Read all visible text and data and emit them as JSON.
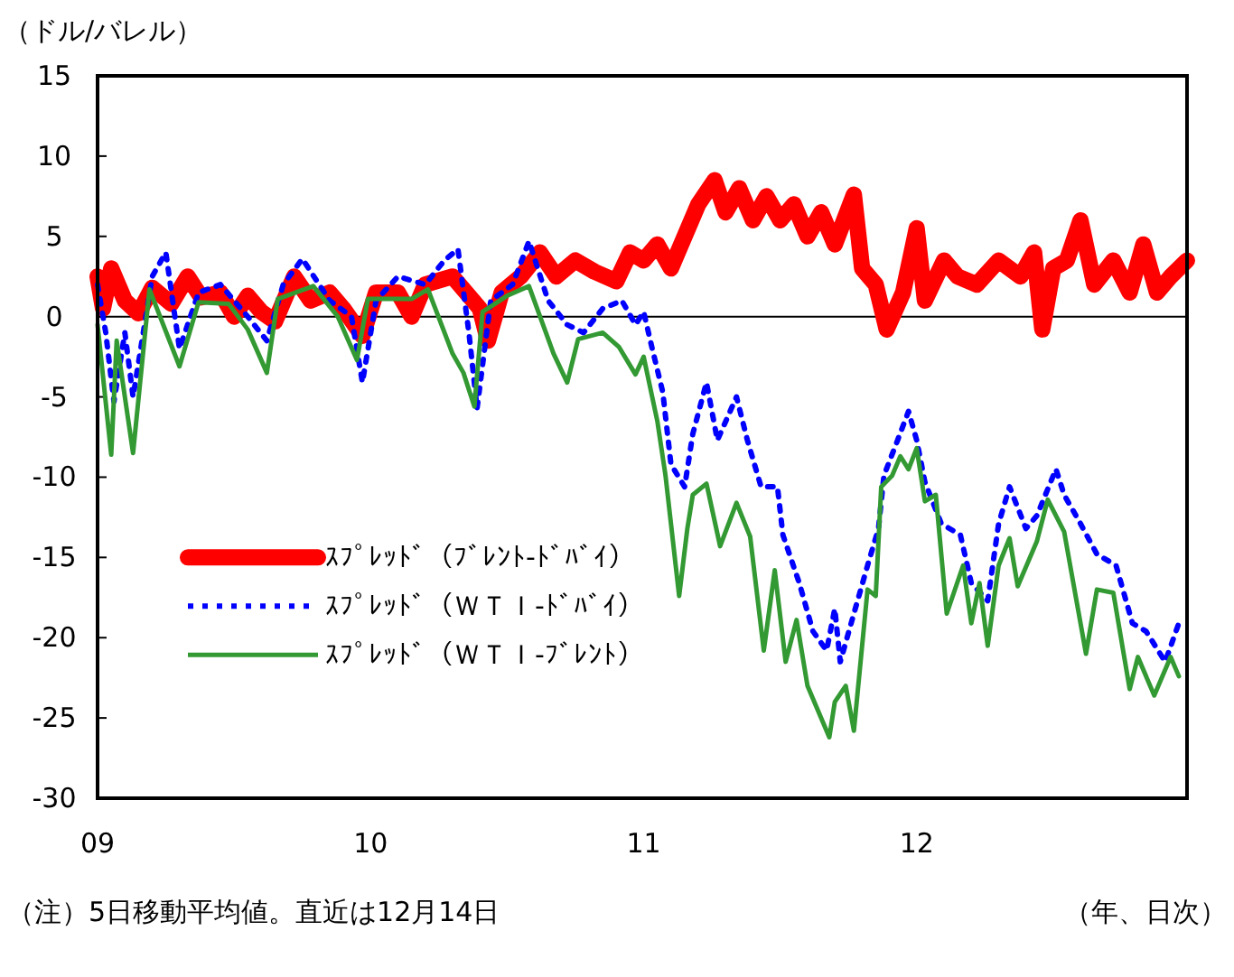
{
  "chart_data": {
    "type": "line",
    "ylabel": "（ドル/バレル）",
    "xlabel": "（年、日次）",
    "annotations": [
      "（注）5日移動平均値。直近は12月14日"
    ],
    "xlim": [
      2009,
      2012.99
    ],
    "xticks": [
      {
        "value": 2009,
        "label": "09"
      },
      {
        "value": 2010,
        "label": "10"
      },
      {
        "value": 2011,
        "label": "11"
      },
      {
        "value": 2012,
        "label": "12"
      }
    ],
    "ylim": [
      -30,
      15
    ],
    "yticks": [
      -30,
      -25,
      -20,
      -15,
      -10,
      -5,
      0,
      5,
      10,
      15
    ],
    "ref_lines": [
      {
        "axis": "y",
        "value": 0,
        "color": "#000000"
      }
    ],
    "legend": "bottom left",
    "grid": false,
    "marker": "none",
    "series": [
      {
        "name": "ｽﾌﾟﾚｯﾄﾞ（ﾌﾞﾚﾝﾄ-ﾄﾞﾊﾞｲ）",
        "color": "#ff0000",
        "line_style": "solid",
        "x": [
          2009,
          2009.02,
          2009.05,
          2009.1,
          2009.15,
          2009.2,
          2009.27,
          2009.33,
          2009.38,
          2009.45,
          2009.5,
          2009.55,
          2009.6,
          2009.65,
          2009.72,
          2009.78,
          2009.85,
          2009.9,
          2009.97,
          2010.02,
          2010.1,
          2010.15,
          2010.2,
          2010.3,
          2010.35,
          2010.4,
          2010.43,
          2010.48,
          2010.55,
          2010.62,
          2010.68,
          2010.75,
          2010.82,
          2010.9,
          2010.95,
          2011,
          2011.05,
          2011.1,
          2011.15,
          2011.2,
          2011.26,
          2011.3,
          2011.35,
          2011.4,
          2011.45,
          2011.5,
          2011.55,
          2011.6,
          2011.65,
          2011.7,
          2011.77,
          2011.8,
          2011.85,
          2011.89,
          2011.95,
          2012,
          2012.03,
          2012.1,
          2012.15,
          2012.22,
          2012.3,
          2012.38,
          2012.43,
          2012.46,
          2012.5,
          2012.55,
          2012.6,
          2012.65,
          2012.72,
          2012.78,
          2012.83,
          2012.88,
          2012.93,
          2012.99
        ],
        "values": [
          2.5,
          0.5,
          3,
          1,
          0.2,
          1.8,
          0.8,
          2.5,
          1.2,
          1.5,
          0,
          1.3,
          0.3,
          -0.3,
          2.5,
          1,
          1.5,
          0.5,
          -1.2,
          1.5,
          1.5,
          0,
          2,
          2.5,
          1.5,
          0.5,
          -1.5,
          1.5,
          2.5,
          4,
          2.5,
          3.5,
          2.8,
          2.2,
          4,
          3.5,
          4.5,
          3,
          5,
          7,
          8.5,
          6.5,
          8,
          6,
          7.5,
          6,
          7,
          5,
          6.5,
          4.5,
          7.6,
          3,
          2,
          -0.8,
          1.5,
          5.5,
          1,
          3.5,
          2.5,
          2,
          3.5,
          2.5,
          4,
          -0.8,
          3,
          3.5,
          6,
          2,
          3.5,
          1.5,
          4.5,
          1.5,
          2.5,
          3.5
        ]
      },
      {
        "name": "ｽﾌﾟﾚｯﾄﾞ（ＷＴＩ-ﾄﾞﾊﾞｲ）",
        "color": "#0000ff",
        "line_style": "dotted",
        "x": [
          2009,
          2009.03,
          2009.06,
          2009.1,
          2009.13,
          2009.2,
          2009.25,
          2009.3,
          2009.37,
          2009.45,
          2009.55,
          2009.62,
          2009.68,
          2009.75,
          2009.85,
          2009.93,
          2009.97,
          2010.02,
          2010.1,
          2010.2,
          2010.27,
          2010.32,
          2010.36,
          2010.39,
          2010.44,
          2010.52,
          2010.58,
          2010.65,
          2010.72,
          2010.78,
          2010.85,
          2010.92,
          2010.97,
          2011,
          2011.03,
          2011.07,
          2011.1,
          2011.15,
          2011.18,
          2011.23,
          2011.27,
          2011.34,
          2011.38,
          2011.43,
          2011.49,
          2011.51,
          2011.57,
          2011.62,
          2011.67,
          2011.7,
          2011.72,
          2011.77,
          2011.82,
          2011.86,
          2011.88,
          2011.93,
          2011.97,
          2012,
          2012.03,
          2012.09,
          2012.16,
          2012.2,
          2012.26,
          2012.3,
          2012.34,
          2012.4,
          2012.44,
          2012.51,
          2012.54,
          2012.6,
          2012.66,
          2012.73,
          2012.79,
          2012.84,
          2012.91,
          2012.96
        ],
        "values": [
          2,
          -1,
          -5.3,
          -1,
          -5,
          2.5,
          4,
          -2,
          1.5,
          2,
          0,
          -1.5,
          2,
          3.6,
          1,
          0,
          -4.1,
          1,
          2.5,
          2,
          3.5,
          4.2,
          -1,
          -5.7,
          1,
          2,
          4.7,
          1,
          -0.5,
          -1,
          0.5,
          1,
          -0.5,
          0.3,
          -1.9,
          -4.7,
          -9.2,
          -10.6,
          -7.3,
          -4.1,
          -7.7,
          -5,
          -7.7,
          -10.6,
          -10.6,
          -13.6,
          -16.6,
          -19.6,
          -20.8,
          -18.2,
          -21.5,
          -18.5,
          -15.5,
          -13.2,
          -9.9,
          -7.7,
          -5.9,
          -7.7,
          -10.3,
          -12.9,
          -13.6,
          -16.6,
          -17.7,
          -12.9,
          -10.6,
          -13.2,
          -12.4,
          -9.5,
          -11.1,
          -12.9,
          -14.8,
          -15.5,
          -19.1,
          -19.6,
          -21.5,
          -19.1
        ]
      },
      {
        "name": "ｽﾌﾟﾚｯﾄﾞ（ＷＴＩ-ﾌﾞﾚﾝﾄ）",
        "color": "#339933",
        "line_style": "solid",
        "x": [
          2009,
          2009.05,
          2009.07,
          2009.13,
          2009.19,
          2009.3,
          2009.37,
          2009.48,
          2009.55,
          2009.62,
          2009.66,
          2009.79,
          2009.88,
          2009.95,
          2009.99,
          2010.15,
          2010.21,
          2010.3,
          2010.34,
          2010.38,
          2010.41,
          2010.5,
          2010.58,
          2010.67,
          2010.72,
          2010.76,
          2010.85,
          2010.91,
          2010.97,
          2011,
          2011.05,
          2011.08,
          2011.13,
          2011.16,
          2011.18,
          2011.23,
          2011.28,
          2011.34,
          2011.39,
          2011.44,
          2011.48,
          2011.52,
          2011.56,
          2011.6,
          2011.68,
          2011.7,
          2011.74,
          2011.77,
          2011.82,
          2011.85,
          2011.87,
          2011.91,
          2011.94,
          2011.97,
          2012,
          2012.03,
          2012.07,
          2012.11,
          2012.17,
          2012.2,
          2012.23,
          2012.26,
          2012.3,
          2012.34,
          2012.37,
          2012.44,
          2012.48,
          2012.54,
          2012.62,
          2012.66,
          2012.72,
          2012.78,
          2012.81,
          2012.87,
          2012.93,
          2012.96
        ],
        "values": [
          -0.5,
          -8.6,
          -1.5,
          -8.5,
          1.7,
          -3.1,
          0.9,
          0.8,
          -0.8,
          -3.5,
          1.1,
          1.9,
          0,
          -2.7,
          1.1,
          1.1,
          1.7,
          -2.3,
          -3.5,
          -5.6,
          0.3,
          1.3,
          1.9,
          -2.3,
          -4.1,
          -1.4,
          -1,
          -1.9,
          -3.6,
          -2.5,
          -6.5,
          -9.9,
          -17.4,
          -13.2,
          -11.1,
          -10.4,
          -14.3,
          -11.6,
          -13.7,
          -20.8,
          -15.8,
          -21.5,
          -18.9,
          -23,
          -26.2,
          -24,
          -23,
          -25.8,
          -17,
          -17.4,
          -10.6,
          -9.9,
          -8.7,
          -9.5,
          -8.2,
          -11.5,
          -11.1,
          -18.5,
          -15.5,
          -19.1,
          -16.6,
          -20.5,
          -15.5,
          -13.8,
          -16.8,
          -14,
          -11.4,
          -13.4,
          -21,
          -17,
          -17.2,
          -23.2,
          -21.2,
          -23.6,
          -21.2,
          -22.4
        ]
      }
    ]
  }
}
